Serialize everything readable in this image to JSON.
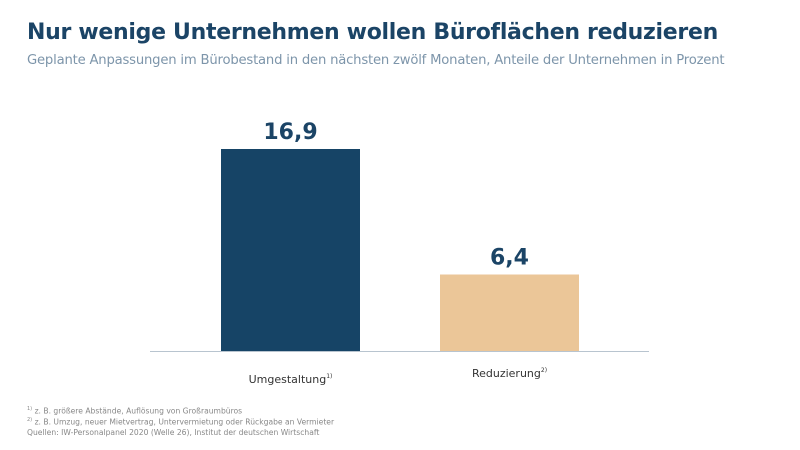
{
  "chart_data": {
    "type": "bar",
    "title": "Nur wenige Unternehmen wollen Büroflächen reduzieren",
    "subtitle": "Geplante Anpassungen im Bürobestand in den nächsten zwölf Monaten, Anteile der Unternehmen  in Prozent",
    "categories": [
      "Umgestaltung",
      "Reduzierung"
    ],
    "category_footnote_marks": [
      "1)",
      "2)"
    ],
    "values": [
      16.9,
      6.4
    ],
    "value_labels": [
      "16,9",
      "6,4"
    ],
    "colors": [
      "#164466",
      "#ebc698"
    ],
    "ylim": [
      0,
      16.9
    ],
    "grid": false,
    "xlabel": "",
    "ylabel": ""
  },
  "footnotes": [
    {
      "mark": "1)",
      "text": "z. B. größere Abstände, Auflösung von Großraumbüros"
    },
    {
      "mark": "2)",
      "text": "z. B. Umzug, neuer Mietvertrag, Untervermietung oder Rückgabe an Vermieter"
    }
  ],
  "source": "Quellen: IW-Personalpanel 2020 (Welle 26), Institut der deutschen Wirtschaft"
}
